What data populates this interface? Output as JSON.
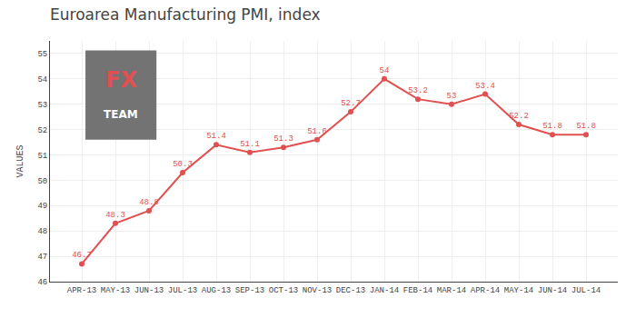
{
  "chart_data": {
    "type": "line",
    "title": "Euroarea Manufacturing PMI, index",
    "ylabel": "VALUES",
    "categories": [
      "APR-13",
      "MAY-13",
      "JUN-13",
      "JUL-13",
      "AUG-13",
      "SEP-13",
      "OCT-13",
      "NOV-13",
      "DEC-13",
      "JAN-14",
      "FEB-14",
      "MAR-14",
      "APR-14",
      "MAY-14",
      "JUN-14",
      "JUL-14"
    ],
    "values": [
      46.7,
      48.3,
      48.8,
      50.3,
      51.4,
      51.1,
      51.3,
      51.6,
      52.7,
      54.0,
      53.2,
      53.0,
      53.4,
      52.2,
      51.8,
      51.8
    ],
    "value_labels": [
      "46.7",
      "48.3",
      "48.8",
      "50.3",
      "51.4",
      "51.1",
      "51.3",
      "51.6",
      "52.7",
      "54",
      "53.2",
      "53",
      "53.4",
      "52.2",
      "51.8",
      "51.8"
    ],
    "data_labels": true,
    "color": "#e05050",
    "marker": "circle",
    "line_style": "solid",
    "ylim": [
      46.0,
      55.5
    ],
    "yticks": [
      46,
      47,
      48,
      49,
      50,
      51,
      52,
      53,
      54,
      55
    ],
    "grid": true,
    "annotations": [
      "FX",
      "TEAM"
    ]
  }
}
